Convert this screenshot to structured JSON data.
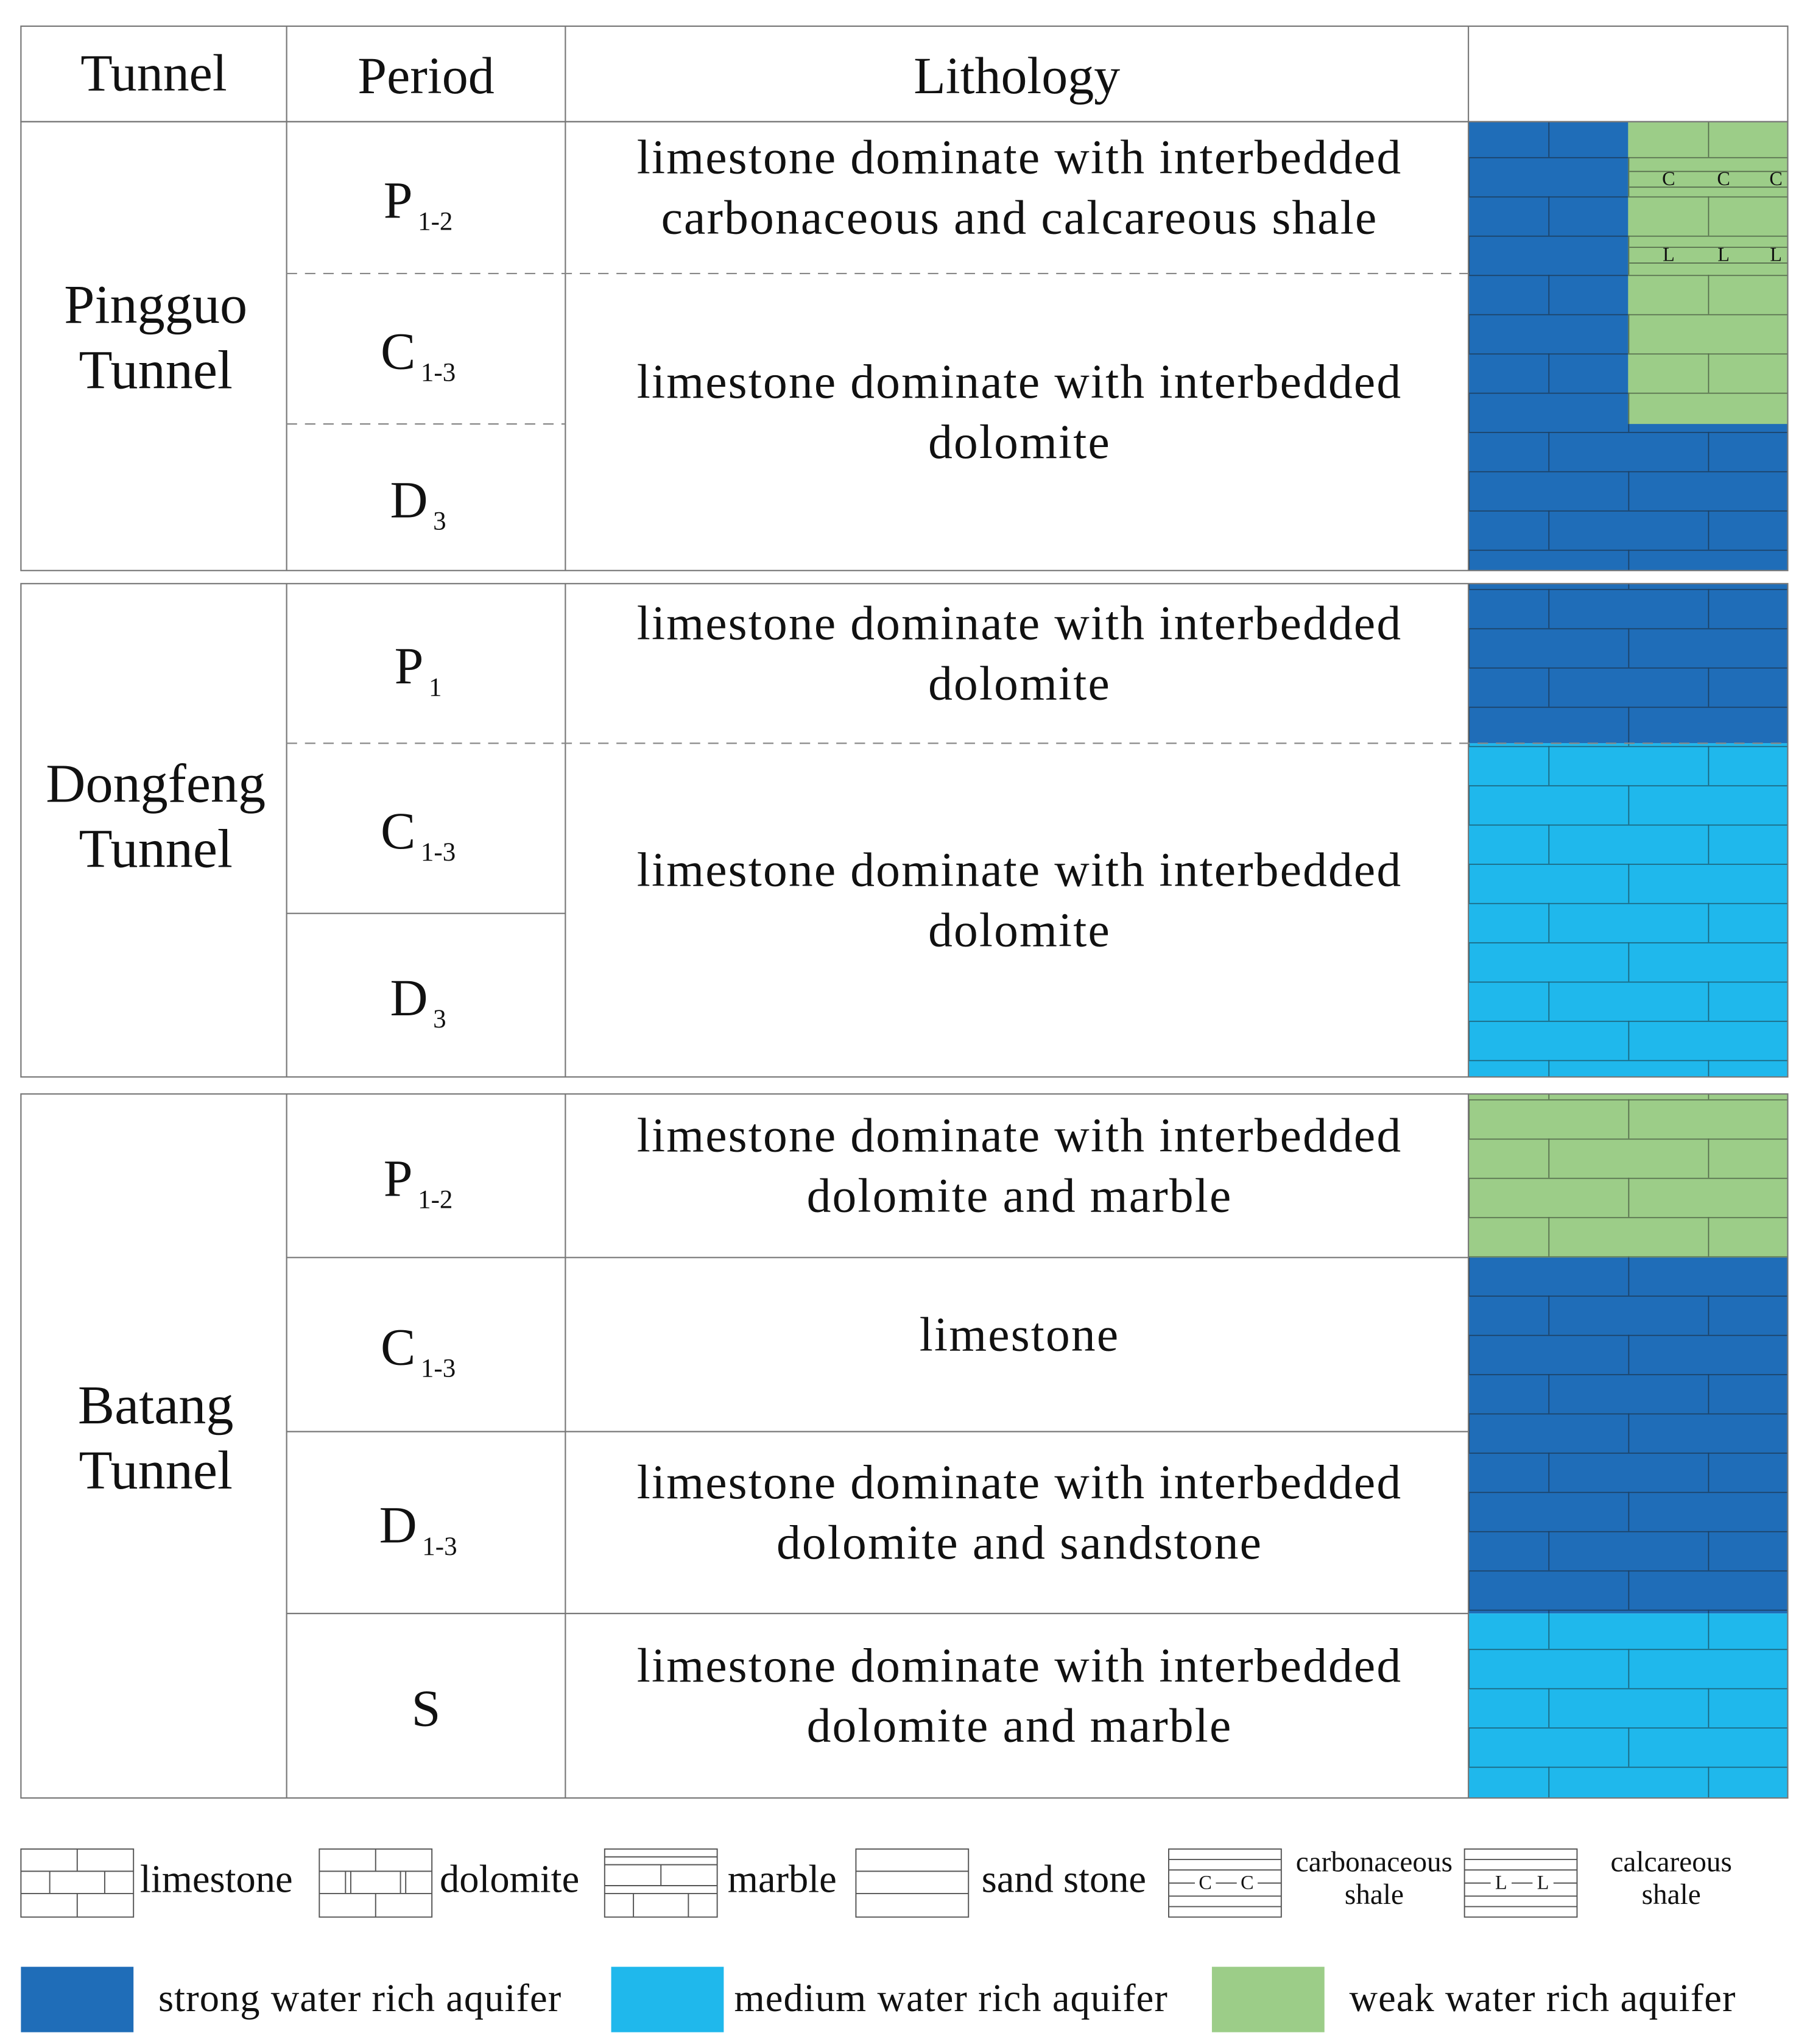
{
  "header": {
    "tunnel": "Tunnel",
    "period": "Period",
    "lithology": "Lithology"
  },
  "sections": [
    {
      "tunnel": [
        "Pingguo",
        "Tunnel"
      ],
      "periods": [
        {
          "main": "P",
          "sub": "1-2"
        },
        {
          "main": "C",
          "sub": "1-3"
        },
        {
          "main": "D",
          "sub": "3"
        }
      ],
      "lithology": [
        [
          "limestone dominate with interbedded",
          "carbonaceous and calcareous shale"
        ],
        [
          "limestone dominate with interbedded",
          "dolomite"
        ]
      ]
    },
    {
      "tunnel": [
        "Dongfeng",
        "Tunnel"
      ],
      "periods": [
        {
          "main": "P",
          "sub": "1"
        },
        {
          "main": "C",
          "sub": "1-3"
        },
        {
          "main": "D",
          "sub": "3"
        }
      ],
      "lithology": [
        [
          "limestone dominate with interbedded",
          "dolomite"
        ],
        [
          "limestone dominate with interbedded",
          "dolomite"
        ]
      ]
    },
    {
      "tunnel": [
        "Batang",
        "Tunnel"
      ],
      "periods": [
        {
          "main": "P",
          "sub": "1-2"
        },
        {
          "main": "C",
          "sub": "1-3"
        },
        {
          "main": "D",
          "sub": "1-3"
        },
        {
          "main": "S",
          "sub": null
        }
      ],
      "lithology": [
        [
          "limestone dominate with interbedded",
          "dolomite and marble"
        ],
        [
          "limestone"
        ],
        [
          "limestone dominate with interbedded",
          "dolomite and sandstone"
        ],
        [
          "limestone dominate with interbedded",
          "dolomite and marble"
        ]
      ]
    }
  ],
  "symbols": {
    "carbonaceous": "C",
    "calcareous": "L"
  },
  "legend": {
    "rocks": [
      [
        "limestone"
      ],
      [
        "dolomite"
      ],
      [
        "marble"
      ],
      [
        "sand stone"
      ],
      [
        "carbonaceous",
        "shale"
      ],
      [
        "calcareous",
        "shale"
      ]
    ],
    "aquifers": [
      {
        "label": "strong water rich aquifer",
        "color": "#1f6db8"
      },
      {
        "label": "medium water rich aquifer",
        "color": "#1fb8ec"
      },
      {
        "label": "weak water rich aquifer",
        "color": "#9ccd88"
      }
    ]
  }
}
